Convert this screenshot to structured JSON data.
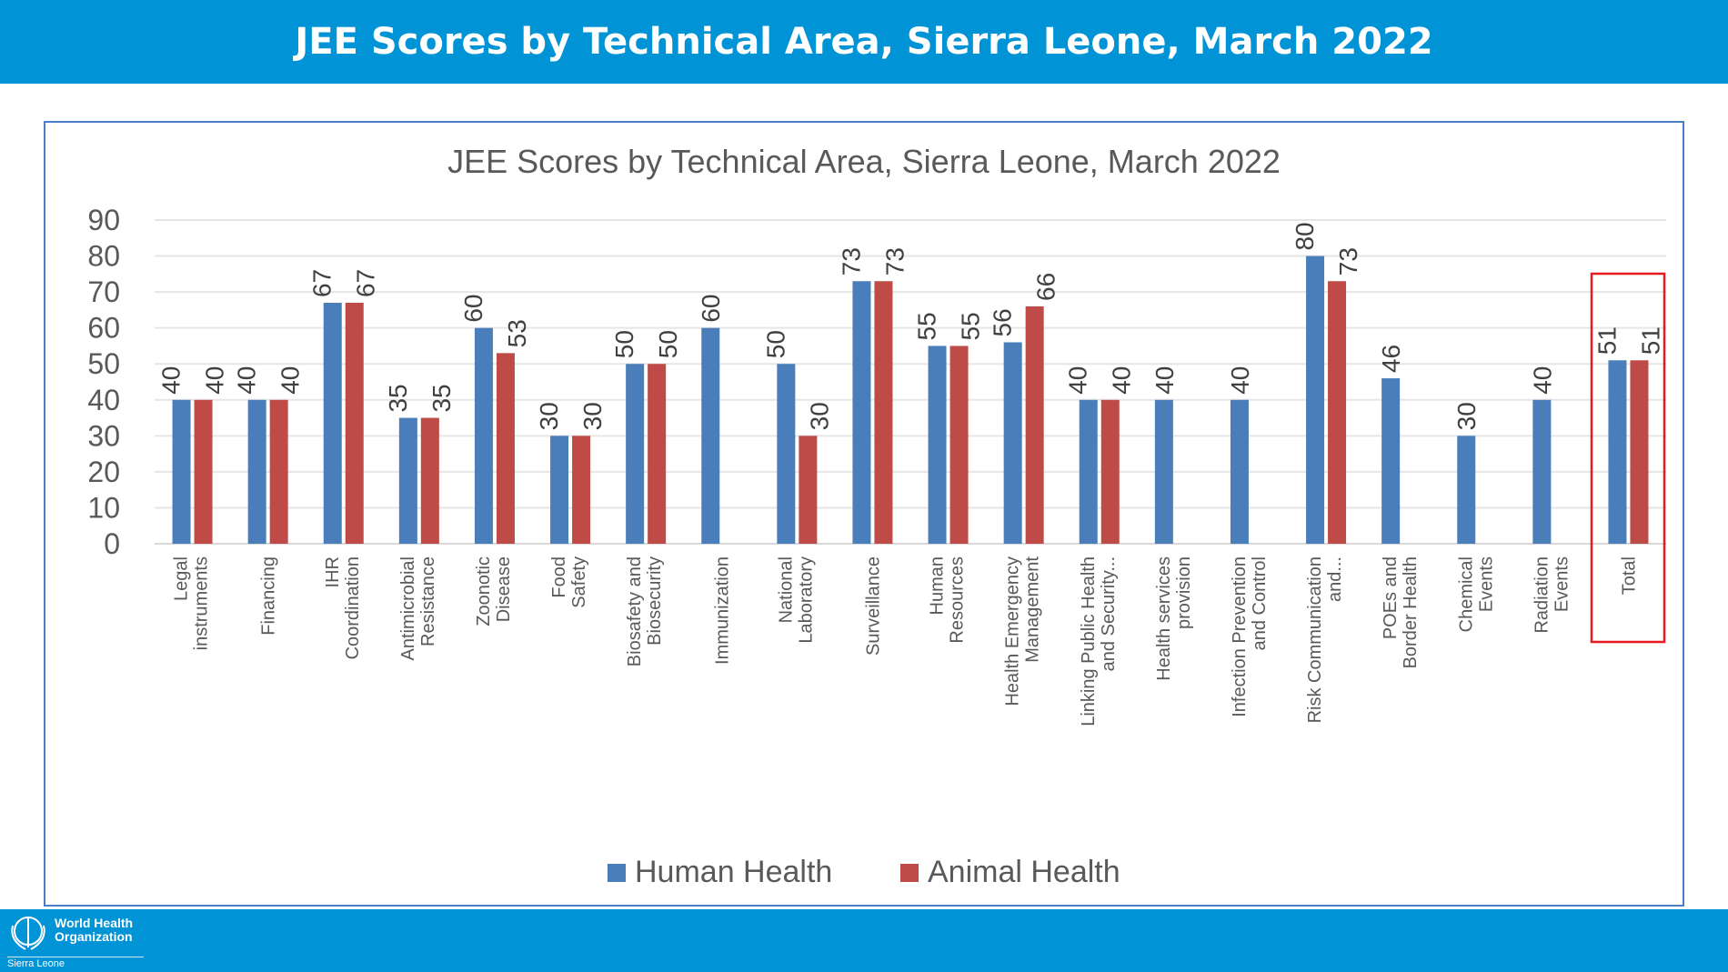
{
  "slide_title": "JEE Scores by Technical Area, Sierra Leone, March 2022",
  "footer": {
    "org": "World Health Organization",
    "org_line1": "World Health",
    "org_line2": "Organization",
    "country": "Sierra Leone"
  },
  "colors": {
    "header": "#0093d5",
    "human": "#4a7ebb",
    "animal": "#be4b48",
    "highlight_box": "#e8191f"
  },
  "chart_data": {
    "type": "bar",
    "title": "JEE Scores by Technical Area, Sierra Leone, March 2022",
    "xlabel": "",
    "ylabel": "",
    "ylim": [
      0,
      90
    ],
    "yticks": [
      0,
      10,
      20,
      30,
      40,
      50,
      60,
      70,
      80,
      90
    ],
    "grid": true,
    "legend": "bottom",
    "highlighted_category": "Total",
    "categories": [
      "Legal instruments",
      "Financing",
      "IHR Coordination",
      "Antimicrobial Resistance",
      "Zoonotic Disease",
      "Food Safety",
      "Biosafety and Biosecurity",
      "Immunization",
      "National Laboratory",
      "Surveillance",
      "Human Resources",
      "Health Emergency Management",
      "Linking Public Health and Security...",
      "Health services provision",
      "Infection Prevention and Control",
      "Risk Communication and...",
      "POEs and Border Health",
      "Chemical Events",
      "Radiation Events",
      "Total"
    ],
    "series": [
      {
        "name": "Human Health",
        "values": [
          40,
          40,
          67,
          35,
          60,
          30,
          50,
          60,
          50,
          73,
          55,
          56,
          40,
          40,
          40,
          80,
          46,
          30,
          40,
          51
        ]
      },
      {
        "name": "Animal Health",
        "values": [
          40,
          40,
          67,
          35,
          53,
          30,
          50,
          null,
          30,
          73,
          55,
          66,
          40,
          null,
          null,
          73,
          null,
          null,
          null,
          51
        ]
      }
    ]
  }
}
